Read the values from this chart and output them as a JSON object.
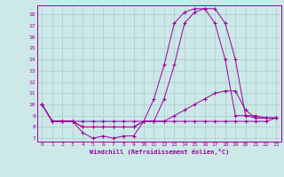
{
  "xlabel": "Windchill (Refroidissement éolien,°C)",
  "bg_color": "#cce8e8",
  "line_color": "#990099",
  "grid_color": "#aacccc",
  "xlim": [
    -0.5,
    23.5
  ],
  "ylim": [
    6.7,
    18.8
  ],
  "yticks": [
    7,
    8,
    9,
    10,
    11,
    12,
    13,
    14,
    15,
    16,
    17,
    18
  ],
  "xticks": [
    0,
    1,
    2,
    3,
    4,
    5,
    6,
    7,
    8,
    9,
    10,
    11,
    12,
    13,
    14,
    15,
    16,
    17,
    18,
    19,
    20,
    21,
    22,
    23
  ],
  "series": [
    {
      "x": [
        0,
        1,
        2,
        3,
        4,
        5,
        6,
        7,
        8,
        9,
        10,
        11,
        12,
        13,
        14,
        15,
        16,
        17,
        18,
        19,
        20,
        21,
        22,
        23
      ],
      "y": [
        10,
        8.5,
        8.5,
        8.5,
        8.0,
        8.0,
        8.0,
        8.0,
        8.0,
        8.0,
        8.5,
        10.5,
        13.5,
        17.2,
        18.2,
        18.5,
        18.5,
        17.2,
        14.0,
        9.0,
        9.0,
        8.8,
        8.8,
        8.8
      ]
    },
    {
      "x": [
        0,
        1,
        2,
        3,
        4,
        5,
        6,
        7,
        8,
        9,
        10,
        11,
        12,
        13,
        14,
        15,
        16,
        17,
        18,
        19,
        20,
        21,
        22,
        23
      ],
      "y": [
        10,
        8.5,
        8.5,
        8.5,
        8.0,
        8.0,
        8.0,
        8.0,
        8.0,
        8.0,
        8.5,
        8.5,
        10.5,
        13.5,
        17.2,
        18.2,
        18.5,
        18.5,
        17.2,
        14.0,
        9.0,
        9.0,
        8.8,
        8.8
      ]
    },
    {
      "x": [
        0,
        1,
        2,
        3,
        4,
        5,
        6,
        7,
        8,
        9,
        10,
        11,
        12,
        13,
        14,
        15,
        16,
        17,
        18,
        19,
        20,
        21,
        22,
        23
      ],
      "y": [
        10,
        8.5,
        8.5,
        8.5,
        7.5,
        7.0,
        7.2,
        7.0,
        7.2,
        7.2,
        8.5,
        8.5,
        8.5,
        9.0,
        9.5,
        10.0,
        10.5,
        11.0,
        11.2,
        11.2,
        9.5,
        8.8,
        8.8,
        8.8
      ]
    },
    {
      "x": [
        0,
        1,
        2,
        3,
        4,
        5,
        6,
        7,
        8,
        9,
        10,
        11,
        12,
        13,
        14,
        15,
        16,
        17,
        18,
        19,
        20,
        21,
        22,
        23
      ],
      "y": [
        10,
        8.5,
        8.5,
        8.5,
        8.5,
        8.5,
        8.5,
        8.5,
        8.5,
        8.5,
        8.5,
        8.5,
        8.5,
        8.5,
        8.5,
        8.5,
        8.5,
        8.5,
        8.5,
        8.5,
        8.5,
        8.5,
        8.5,
        8.8
      ]
    }
  ]
}
